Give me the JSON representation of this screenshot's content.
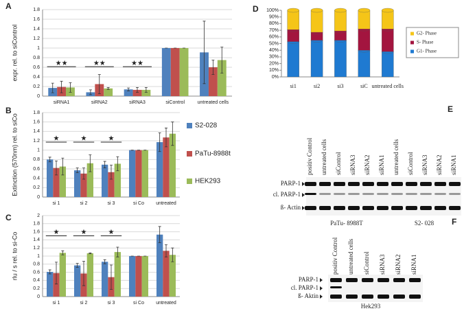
{
  "chart_data": [
    {
      "type": "bar",
      "label": "A",
      "y_label": "expr. rel. to siControl",
      "categories": [
        "siRNA1",
        "siRNA2",
        "siRNA3",
        "siControl",
        "untreated cells"
      ],
      "series": [
        {
          "color": "#4f81bd",
          "values": [
            0.17,
            0.08,
            0.14,
            1,
            0.91
          ],
          "errors": [
            0.1,
            0.05,
            0.03,
            0,
            0.65
          ]
        },
        {
          "color": "#c0504d",
          "values": [
            0.19,
            0.25,
            0.13,
            1,
            0.6
          ],
          "errors": [
            0.12,
            0.2,
            0.05,
            0,
            0.15
          ]
        },
        {
          "color": "#9bbb59",
          "values": [
            0.18,
            0.16,
            0.13,
            1,
            0.75
          ],
          "errors": [
            0.1,
            0.02,
            0.05,
            0,
            0.27
          ]
        }
      ],
      "annotations": [
        "★★",
        "★★",
        "★★"
      ],
      "ylim": [
        0,
        1.8
      ],
      "yticks": [
        0,
        0.2,
        0.4,
        0.6,
        0.8,
        1,
        1.2,
        1.4,
        1.6,
        1.8
      ],
      "grid": true
    },
    {
      "type": "bar",
      "label": "B",
      "y_label": "Extinction (570nm) rel. to siCo",
      "categories": [
        "si 1",
        "si 2",
        "si 3",
        "si Co",
        "untreated"
      ],
      "series": [
        {
          "name": "S2-028",
          "color": "#4f81bd",
          "values": [
            0.8,
            0.57,
            0.69,
            1,
            1.17
          ],
          "errors": [
            0.05,
            0.05,
            0.07,
            0,
            0.2
          ]
        },
        {
          "name": "PaTu-8988t",
          "color": "#c0504d",
          "values": [
            0.62,
            0.5,
            0.53,
            1,
            1.27
          ],
          "errors": [
            0.15,
            0.12,
            0.15,
            0,
            0.2
          ]
        },
        {
          "name": "HEK293",
          "color": "#9bbb59",
          "values": [
            0.65,
            0.72,
            0.71,
            1,
            1.35
          ],
          "errors": [
            0.18,
            0.18,
            0.15,
            0,
            0.25
          ]
        }
      ],
      "annotations": [
        "★",
        "★",
        "★"
      ],
      "legend": "right",
      "ylim": [
        0,
        1.8
      ],
      "yticks": [
        0,
        0.2,
        0.4,
        0.6,
        0.8,
        1,
        1.2,
        1.4,
        1.6,
        1.8
      ],
      "grid": true
    },
    {
      "type": "bar",
      "label": "C",
      "y_label": "rlu / s rel. to si-Co",
      "categories": [
        "si 1",
        "si 2",
        "si 3",
        "si Co",
        "untreated"
      ],
      "series": [
        {
          "color": "#4f81bd",
          "values": [
            0.61,
            0.77,
            0.86,
            1,
            1.53
          ],
          "errors": [
            0.05,
            0.05,
            0.05,
            0,
            0.2
          ]
        },
        {
          "color": "#c0504d",
          "values": [
            0.58,
            0.57,
            0.48,
            1,
            1.13
          ],
          "errors": [
            0.27,
            0.3,
            0.3,
            0,
            0.15
          ]
        },
        {
          "color": "#9bbb59",
          "values": [
            1.08,
            1.07,
            1.1,
            1,
            1.03
          ],
          "errors": [
            0.05,
            0.01,
            0.12,
            0,
            0.17
          ]
        }
      ],
      "annotations": [
        "★",
        "★",
        "★"
      ],
      "ylim": [
        0,
        2
      ],
      "yticks": [
        0,
        0.2,
        0.4,
        0.6,
        0.8,
        1,
        1.2,
        1.4,
        1.6,
        1.8,
        2
      ],
      "grid": true
    },
    {
      "type": "bar",
      "label": "D",
      "stacked": true,
      "categories": [
        "si1",
        "si2",
        "si3",
        "siC",
        "untreated cells"
      ],
      "series": [
        {
          "name": "G1- Phase",
          "color": "#1f7ad1",
          "values": [
            53,
            55,
            55,
            40,
            38
          ]
        },
        {
          "name": "S- Phase",
          "color": "#a3153f",
          "values": [
            18,
            12,
            14,
            32,
            34
          ]
        },
        {
          "name": "G2- Phase",
          "color": "#f5c518",
          "values": [
            29,
            33,
            31,
            28,
            28
          ]
        }
      ],
      "legend": "right",
      "ylim": [
        0,
        100
      ],
      "yticks": [
        {
          "value": 0,
          "label": "0%"
        },
        {
          "value": 10,
          "label": "10%"
        },
        {
          "value": 20,
          "label": "20%"
        },
        {
          "value": 30,
          "label": "30%"
        },
        {
          "value": 40,
          "label": "40%"
        },
        {
          "value": 50,
          "label": "50%"
        },
        {
          "value": 60,
          "label": "60%"
        },
        {
          "value": 70,
          "label": "70%"
        },
        {
          "value": 80,
          "label": "80%"
        },
        {
          "value": 90,
          "label": "90%"
        },
        {
          "value": 100,
          "label": "100%"
        }
      ],
      "grid": false
    }
  ],
  "blots": [
    {
      "label": "E",
      "lanes": [
        "positiv Control",
        "untreated cells",
        "siControl",
        "siRNA3",
        "siRNA2",
        "siRNA1",
        "untreated cells",
        "siControl",
        "siRNA3",
        "siRNA2",
        "siRNA1"
      ],
      "bands": [
        "PARP-1",
        "cl. PARP-1",
        "ß- Actin"
      ],
      "groups": [
        "PaTu- 8988T",
        "S2- 028"
      ]
    },
    {
      "label": "F",
      "lanes": [
        "positiv Control",
        "untreated cells",
        "siControl",
        "siRNA3",
        "siRNA2",
        "siRNA1"
      ],
      "bands": [
        "PARP-1",
        "cl. PARP-1",
        "ß- Aktin"
      ],
      "groups": [
        "Hek293"
      ]
    }
  ]
}
